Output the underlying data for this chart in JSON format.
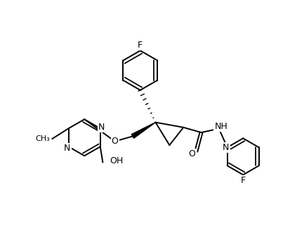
{
  "bg_color": "#ffffff",
  "line_color": "#000000",
  "line_width": 1.4,
  "font_size": 8.5,
  "figsize": [
    4.14,
    3.31
  ],
  "dpi": 100,
  "xlim": [
    0.0,
    10.5
  ],
  "ylim": [
    1.5,
    10.5
  ]
}
